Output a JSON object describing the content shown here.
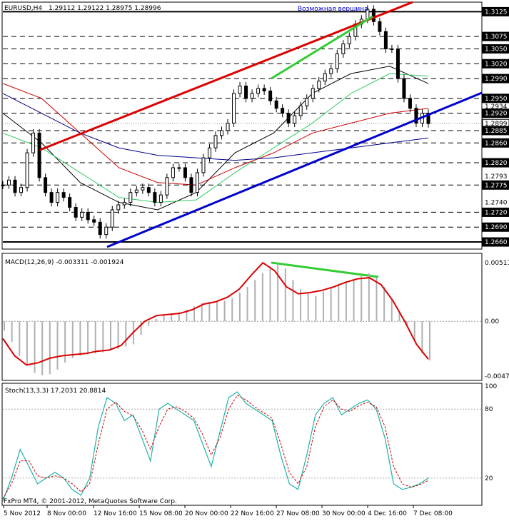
{
  "header": {
    "symbol": "EURUSD,H4",
    "ohlc": "1.29112 1.29122 1.28975 1.28996",
    "annotation": "Возможная вершина"
  },
  "macd_panel": {
    "label": "MACD(12,26,9) -0.003311 -0.001924"
  },
  "stoch_panel": {
    "label": "Stoch(13,3,3) 17.2031 20.8814"
  },
  "footer": {
    "copyright": "FxPro MT4, © 2001-2012, MetaQuotes Software Corp."
  },
  "colors": {
    "candles": "#000000",
    "channel_upper": "#dd0000",
    "channel_lower": "#0000cc",
    "divergence": "#33cc33",
    "ma_fast": "#000000",
    "ma_green": "#33cc66",
    "ma_red": "#cc0000",
    "ma_blue": "#00008b",
    "macd_hist": "#b0b0b0",
    "macd_signal": "#dd0000",
    "stoch_main": "#20b2aa",
    "stoch_signal": "#cc0000"
  },
  "chart_data": [
    {
      "type": "line",
      "panel": "price",
      "ylim": [
        1.265,
        1.314
      ],
      "price_tick_labels": [
        "1.3125",
        "1.3075",
        "1.3050",
        "1.3020",
        "1.2990",
        "1.2950",
        "1.2934",
        "1.2920",
        "1.2899",
        "1.2885",
        "1.2860",
        "1.2820",
        "1.2793",
        "1.2775",
        "1.2740",
        "1.2720",
        "1.2690",
        "1.2660"
      ],
      "price_tick_values": [
        1.3125,
        1.3075,
        1.305,
        1.302,
        1.299,
        1.295,
        1.2934,
        1.292,
        1.2899,
        1.2885,
        1.286,
        1.282,
        1.2793,
        1.2775,
        1.274,
        1.272,
        1.269,
        1.266
      ],
      "level_lines": [
        1.3125,
        1.3075,
        1.305,
        1.302,
        1.299,
        1.295,
        1.292,
        1.2885,
        1.286,
        1.282,
        1.2775,
        1.272,
        1.269,
        1.266
      ],
      "current_price": 1.28996,
      "price_series": [
        1.2775,
        1.2785,
        1.276,
        1.277,
        1.284,
        1.288,
        1.279,
        1.276,
        1.274,
        1.276,
        1.275,
        1.273,
        1.271,
        1.272,
        1.2705,
        1.27,
        1.2675,
        1.269,
        1.2725,
        1.2735,
        1.274,
        1.276,
        1.2765,
        1.277,
        1.276,
        1.274,
        1.2755,
        1.279,
        1.281,
        1.281,
        1.279,
        1.276,
        1.28,
        1.283,
        1.285,
        1.2875,
        1.2885,
        1.29,
        1.296,
        1.2975,
        1.295,
        1.296,
        1.297,
        1.2965,
        1.2945,
        1.293,
        1.292,
        1.29,
        1.2915,
        1.2935,
        1.295,
        1.297,
        1.2985,
        1.3,
        1.301,
        1.304,
        1.306,
        1.3075,
        1.31,
        1.311,
        1.313,
        1.3105,
        1.3085,
        1.305,
        1.305,
        1.299,
        1.295,
        1.293,
        1.29,
        1.292,
        1.2899
      ],
      "moving_averages": [
        {
          "color": "ma_fast",
          "values": [
            1.292,
            1.286,
            1.278,
            1.274,
            1.2725,
            1.276,
            1.284,
            1.288,
            1.296,
            1.3,
            1.3015,
            1.298
          ]
        },
        {
          "color": "ma_green",
          "values": [
            1.288,
            1.285,
            1.28,
            1.275,
            1.274,
            1.2745,
            1.28,
            1.285,
            1.29,
            1.296,
            1.3,
            1.2995
          ]
        },
        {
          "color": "ma_red",
          "values": [
            1.298,
            1.295,
            1.288,
            1.281,
            1.278,
            1.2775,
            1.281,
            1.284,
            1.288,
            1.29,
            1.292,
            1.293
          ]
        },
        {
          "color": "ma_blue",
          "values": [
            1.296,
            1.292,
            1.288,
            1.285,
            1.2835,
            1.283,
            1.2825,
            1.283,
            1.284,
            1.285,
            1.286,
            1.287
          ]
        }
      ]
    },
    {
      "type": "area",
      "panel": "macd",
      "ylim": [
        -0.00477,
        0.00511
      ],
      "tick_labels": [
        "0.00511",
        "0.00",
        "-0.00477"
      ],
      "tick_values": [
        0.00511,
        0.0,
        -0.00477
      ],
      "histogram": [
        -0.0008,
        -0.0018,
        -0.003,
        -0.0038,
        -0.0045,
        -0.0047,
        -0.0046,
        -0.0042,
        -0.0036,
        -0.0032,
        -0.003,
        -0.0029,
        -0.0028,
        -0.0027,
        -0.0025,
        -0.0024,
        -0.0022,
        -0.002,
        -0.0012,
        -0.0004,
        0.0002,
        0.0006,
        0.0007,
        0.0008,
        0.001,
        0.0013,
        0.0016,
        0.0017,
        0.0017,
        0.0018,
        0.002,
        0.0025,
        0.003,
        0.0036,
        0.0042,
        0.0048,
        0.005,
        0.0046,
        0.0036,
        0.0028,
        0.0024,
        0.0022,
        0.0026,
        0.003,
        0.0033,
        0.0035,
        0.0037,
        0.004,
        0.0042,
        0.0038,
        0.003,
        0.002,
        0.0008,
        -0.0004,
        -0.0016,
        -0.0028,
        -0.0034
      ],
      "signal": [
        -0.0015,
        -0.003,
        -0.0038,
        -0.0036,
        -0.0032,
        -0.003,
        -0.0029,
        -0.0028,
        -0.0026,
        -0.0025,
        -0.0021,
        -0.001,
        0.0,
        0.0005,
        0.0006,
        0.0007,
        0.001,
        0.0015,
        0.0017,
        0.0021,
        0.0028,
        0.004,
        0.0051,
        0.0044,
        0.003,
        0.0024,
        0.0025,
        0.0027,
        0.003,
        0.0034,
        0.0037,
        0.0038,
        0.0032,
        0.0018,
        0.0,
        -0.002,
        -0.0033
      ]
    },
    {
      "type": "line",
      "panel": "stoch",
      "ylim": [
        0,
        100
      ],
      "tick_labels": [
        "100",
        "80",
        "20"
      ],
      "tick_values": [
        100,
        80,
        20
      ],
      "main": [
        0,
        20,
        45,
        30,
        15,
        20,
        25,
        20,
        10,
        5,
        20,
        65,
        90,
        85,
        70,
        75,
        55,
        35,
        80,
        85,
        80,
        75,
        70,
        50,
        30,
        60,
        90,
        95,
        85,
        80,
        75,
        70,
        40,
        15,
        10,
        40,
        75,
        85,
        90,
        75,
        80,
        85,
        88,
        80,
        55,
        15,
        10,
        12,
        15,
        20
      ],
      "signal": [
        2,
        15,
        35,
        35,
        22,
        20,
        22,
        20,
        15,
        8,
        15,
        50,
        80,
        86,
        78,
        74,
        62,
        45,
        65,
        80,
        82,
        78,
        72,
        58,
        40,
        55,
        80,
        92,
        88,
        82,
        77,
        72,
        50,
        25,
        15,
        30,
        65,
        82,
        88,
        80,
        78,
        83,
        86,
        82,
        65,
        30,
        15,
        12,
        14,
        18
      ]
    }
  ],
  "x_axis_labels": [
    "5 Nov 2012",
    "8 Nov 00:00",
    "12 Nov 16:00",
    "15 Nov 08:00",
    "20 Nov 00:00",
    "22 Nov 16:00",
    "27 Nov 08:00",
    "30 Nov 00:00",
    "4 Dec 16:00",
    "7 Dec 08:00"
  ]
}
